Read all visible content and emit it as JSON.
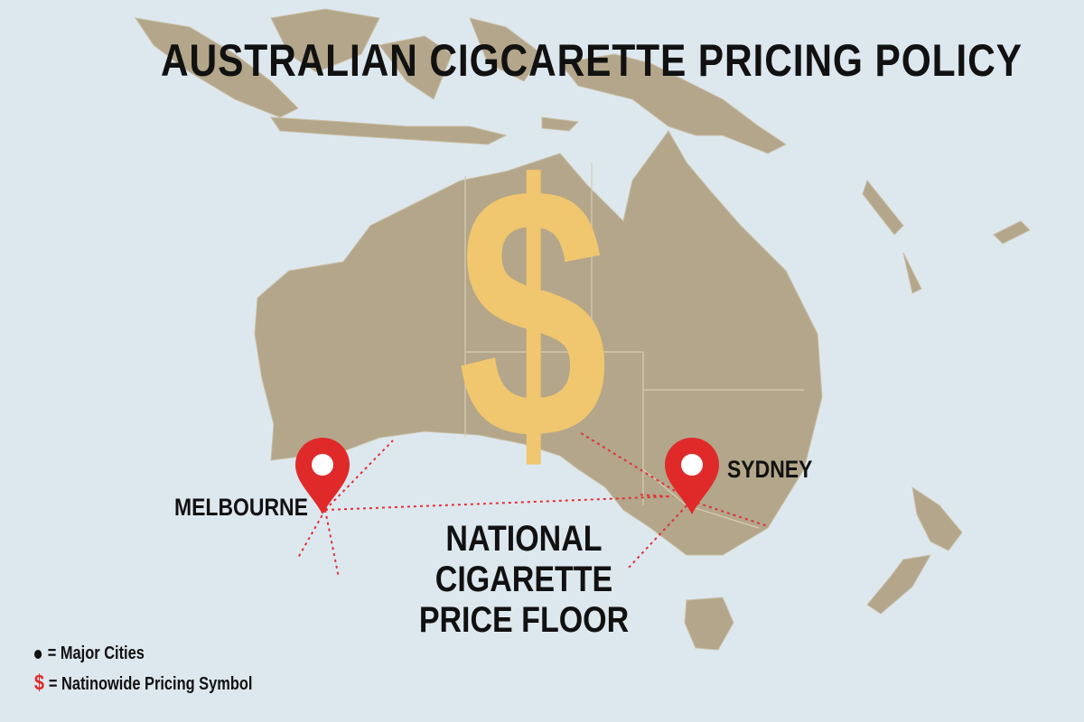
{
  "title": "AUSTRALIAN CIGCARETTE PRICING POLICY",
  "center_label": [
    "NATIONAL",
    "CIGARETTE",
    "PRICE FLOOR"
  ],
  "cities": [
    {
      "name": "MELBOURNE",
      "icon": "map-pin-icon"
    },
    {
      "name": "SYDNEY",
      "icon": "map-pin-icon"
    }
  ],
  "symbol": {
    "glyph": "$",
    "icon": "dollar-sign-icon",
    "color": "#f0c66e"
  },
  "legend": [
    {
      "marker": "●",
      "label": "= Major Cities"
    },
    {
      "marker": "$",
      "label": "= Natinowide Pricing Symbol"
    }
  ],
  "colors": {
    "ocean": "#dde8ee",
    "land": "#b3a68a",
    "pin": "#e02a2a",
    "route": "#e0303a"
  }
}
